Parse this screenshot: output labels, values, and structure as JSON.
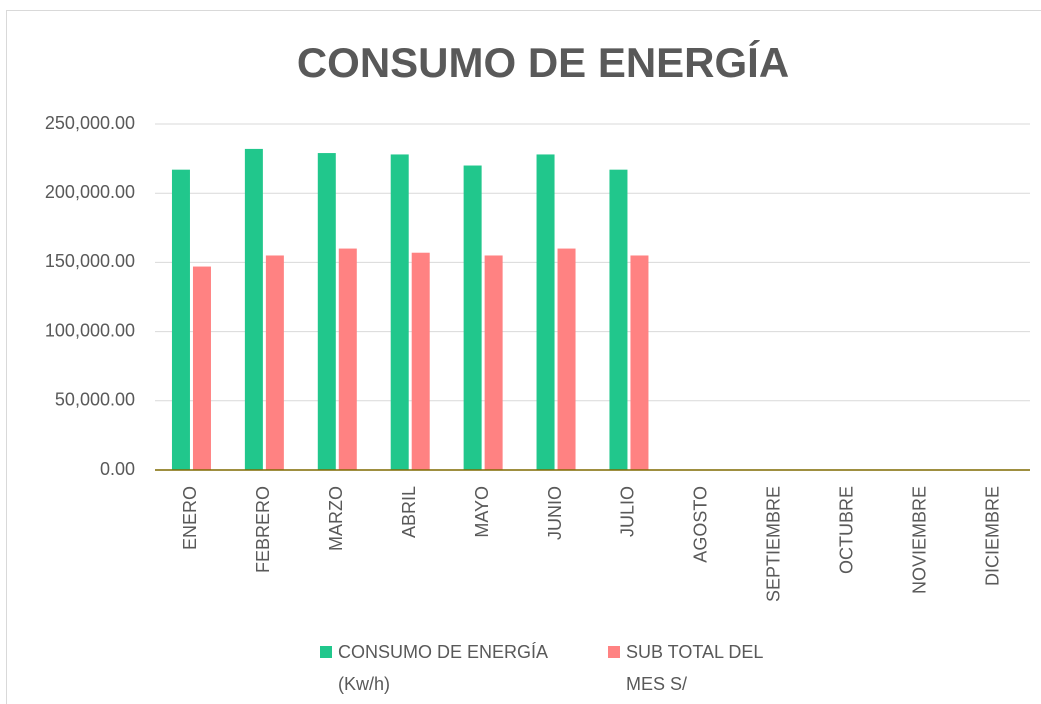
{
  "chart_data": {
    "type": "bar",
    "title": "CONSUMO DE ENERGÍA",
    "categories": [
      "ENERO",
      "FEBRERO",
      "MARZO",
      "ABRIL",
      "MAYO",
      "JUNIO",
      "JULIO",
      "AGOSTO",
      "SEPTIEMBRE",
      "OCTUBRE",
      "NOVIEMBRE",
      "DICIEMBRE"
    ],
    "series": [
      {
        "name": "CONSUMO DE ENERGÍA (Kw/h)",
        "color": "#21c78c",
        "values": [
          217000,
          232000,
          229000,
          228000,
          220000,
          228000,
          217000,
          null,
          null,
          null,
          null,
          null
        ]
      },
      {
        "name": "SUB TOTAL DEL MES S/",
        "color": "#ff8282",
        "values": [
          147000,
          155000,
          160000,
          157000,
          155000,
          160000,
          155000,
          null,
          null,
          null,
          null,
          null
        ]
      }
    ],
    "ylim": [
      0,
      250000
    ],
    "yticks": [
      {
        "value": 0,
        "label": "0.00"
      },
      {
        "value": 50000,
        "label": "50,000.00"
      },
      {
        "value": 100000,
        "label": "100,000.00"
      },
      {
        "value": 150000,
        "label": "150,000.00"
      },
      {
        "value": 200000,
        "label": "200,000.00"
      },
      {
        "value": 250000,
        "label": "250,000.00"
      }
    ],
    "grid": true,
    "legend": "bottom"
  }
}
